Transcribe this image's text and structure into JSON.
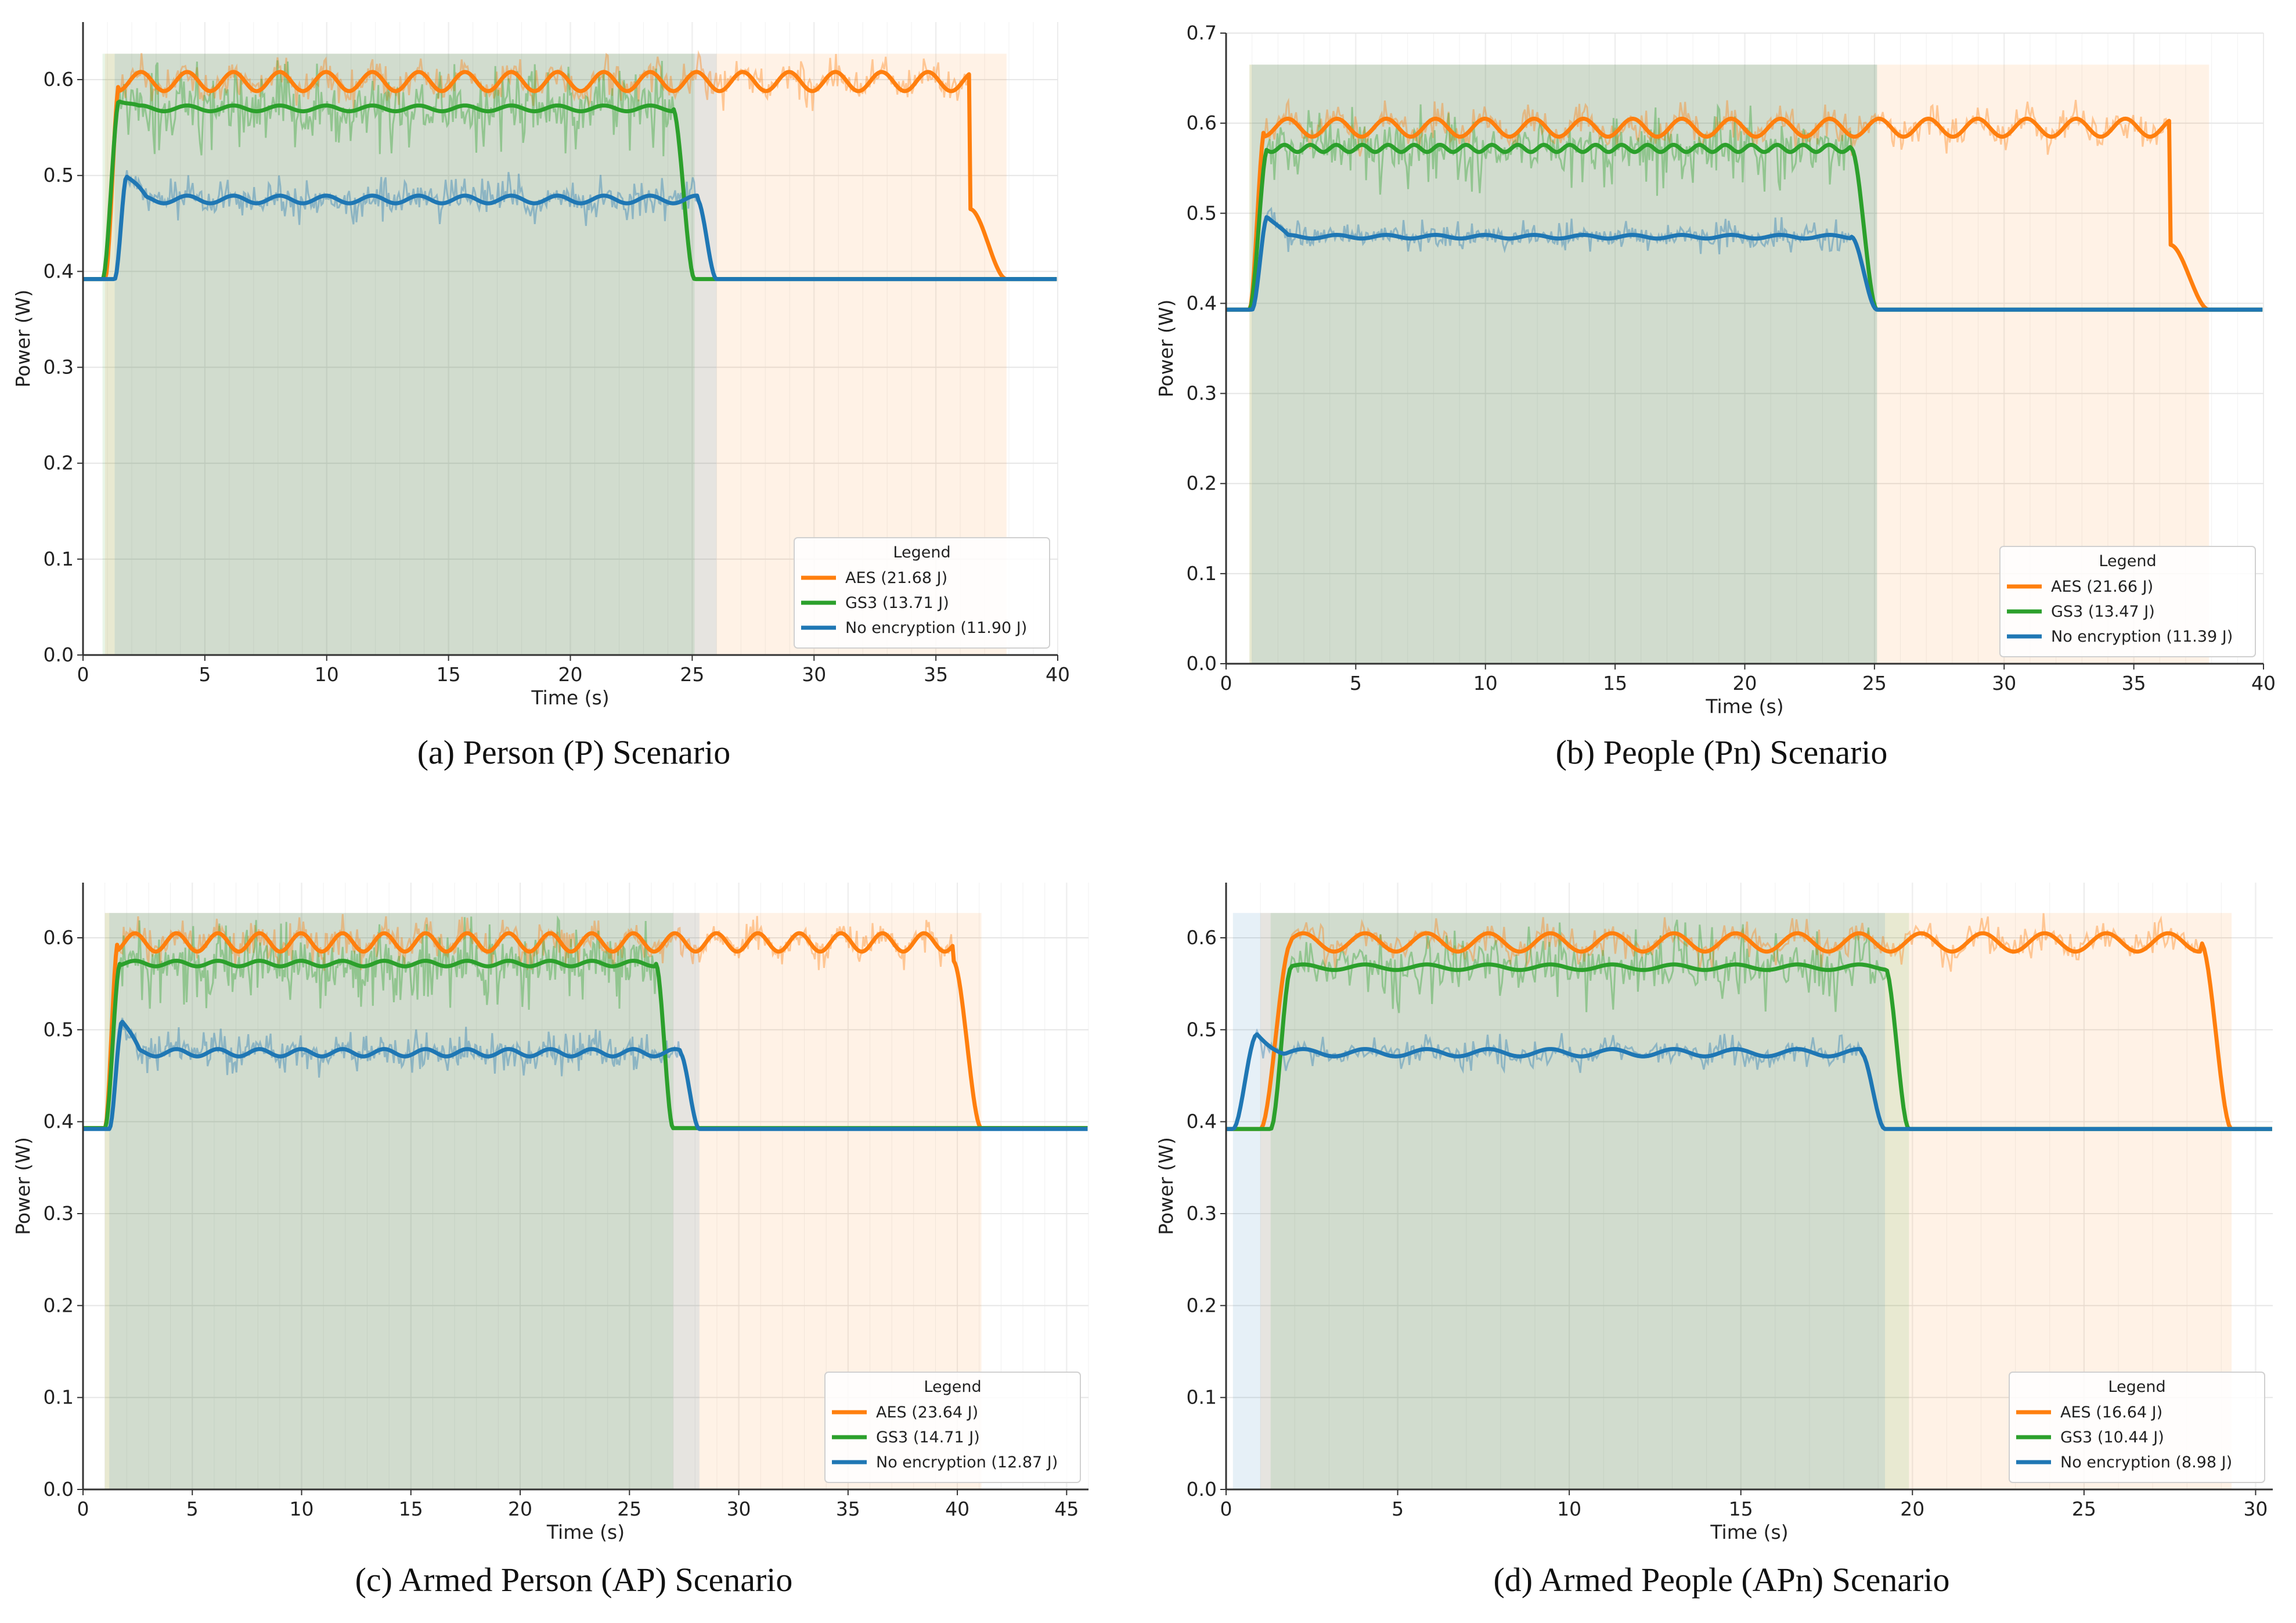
{
  "colors": {
    "aes": "#ff7f0e",
    "gs3": "#2ca02c",
    "none": "#1f77b4"
  },
  "chart_data": [
    {
      "type": "line",
      "caption": "(a) Person (P) Scenario",
      "xlabel": "Time (s)",
      "ylabel": "Power (W)",
      "xlim": [
        0,
        40
      ],
      "ylim": [
        0,
        0.66
      ],
      "xticks": [
        0,
        5,
        10,
        15,
        20,
        25,
        30,
        35,
        40
      ],
      "yticks": [
        0.0,
        0.1,
        0.2,
        0.3,
        0.4,
        0.5,
        0.6
      ],
      "grid": true,
      "legend_title": "Legend",
      "legend_position": "bottom-right",
      "series": [
        {
          "name": "AES (21.68 J)",
          "color": "#ff7f0e",
          "baseline": 0.392,
          "start": 0.9,
          "end": 37.9,
          "rise": 0.6,
          "fall": 1.5,
          "level": 0.598,
          "ripple": 0.01,
          "ripple_period": 1.9,
          "noise": 0.022,
          "dip_at": 36.5,
          "dip_level": 0.465
        },
        {
          "name": "GS3 (13.71 J)",
          "color": "#2ca02c",
          "baseline": 0.392,
          "start": 0.8,
          "end": 25.1,
          "rise": 0.7,
          "fall": 0.9,
          "level": 0.57,
          "ripple": 0.003,
          "ripple_period": 1.9,
          "noise": 0.05,
          "peak": 0.58
        },
        {
          "name": "No encryption (11.90 J)",
          "color": "#1f77b4",
          "baseline": 0.392,
          "start": 1.3,
          "end": 26.0,
          "rise": 0.5,
          "fall": 0.8,
          "level": 0.475,
          "ripple": 0.004,
          "ripple_period": 1.9,
          "noise": 0.025,
          "peak": 0.5
        }
      ]
    },
    {
      "type": "line",
      "caption": "(b) People (Pn) Scenario",
      "xlabel": "Time (s)",
      "ylabel": "Power (W)",
      "xlim": [
        0,
        40
      ],
      "ylim": [
        0,
        0.7
      ],
      "xticks": [
        0,
        5,
        10,
        15,
        20,
        25,
        30,
        35,
        40
      ],
      "yticks": [
        0.0,
        0.1,
        0.2,
        0.3,
        0.4,
        0.5,
        0.6,
        0.7
      ],
      "grid": true,
      "legend_title": "Legend",
      "legend_position": "bottom-right",
      "series": [
        {
          "name": "AES (21.66 J)",
          "color": "#ff7f0e",
          "baseline": 0.393,
          "start": 0.9,
          "end": 37.9,
          "rise": 0.6,
          "fall": 1.5,
          "level": 0.595,
          "ripple": 0.01,
          "ripple_period": 1.9,
          "noise": 0.022,
          "dip_at": 36.8,
          "dip_level": 0.465
        },
        {
          "name": "GS3 (13.47 J)",
          "color": "#2ca02c",
          "baseline": 0.393,
          "start": 0.9,
          "end": 25.1,
          "rise": 0.7,
          "fall": 1.0,
          "level": 0.572,
          "ripple": 0.004,
          "ripple_period": 1.0,
          "noise": 0.05
        },
        {
          "name": "No encryption (11.39 J)",
          "color": "#1f77b4",
          "baseline": 0.393,
          "start": 1.0,
          "end": 25.1,
          "rise": 0.6,
          "fall": 1.0,
          "level": 0.474,
          "ripple": 0.002,
          "ripple_period": 1.9,
          "noise": 0.02,
          "peak": 0.497
        }
      ]
    },
    {
      "type": "line",
      "caption": "(c) Armed Person (AP) Scenario",
      "xlabel": "Time (s)",
      "ylabel": "Power (W)",
      "xlim": [
        0,
        46
      ],
      "ylim": [
        0,
        0.66
      ],
      "xticks": [
        0,
        5,
        10,
        15,
        20,
        25,
        30,
        35,
        40,
        45
      ],
      "yticks": [
        0.0,
        0.1,
        0.2,
        0.3,
        0.4,
        0.5,
        0.6
      ],
      "grid": true,
      "legend_title": "Legend",
      "legend_position": "bottom-right",
      "series": [
        {
          "name": "AES (23.64 J)",
          "color": "#ff7f0e",
          "baseline": 0.393,
          "start": 1.0,
          "end": 41.1,
          "rise": 0.6,
          "fall": 1.3,
          "level": 0.595,
          "ripple": 0.01,
          "ripple_period": 1.9,
          "noise": 0.022,
          "dip_at": 40.0,
          "dip_level": 0.575
        },
        {
          "name": "GS3 (14.71 J)",
          "color": "#2ca02c",
          "baseline": 0.393,
          "start": 1.0,
          "end": 27.0,
          "rise": 0.7,
          "fall": 0.8,
          "level": 0.572,
          "ripple": 0.003,
          "ripple_period": 1.9,
          "noise": 0.05
        },
        {
          "name": "No encryption (12.87 J)",
          "color": "#1f77b4",
          "baseline": 0.392,
          "start": 1.2,
          "end": 28.2,
          "rise": 0.6,
          "fall": 0.9,
          "level": 0.475,
          "ripple": 0.004,
          "ripple_period": 1.9,
          "noise": 0.025,
          "peak": 0.51
        }
      ]
    },
    {
      "type": "line",
      "caption": "(d) Armed People (APn) Scenario",
      "xlabel": "Time (s)",
      "ylabel": "Power (W)",
      "xlim": [
        0,
        30.5
      ],
      "ylim": [
        0,
        0.66
      ],
      "xticks": [
        0,
        5,
        10,
        15,
        20,
        25,
        30
      ],
      "yticks": [
        0.0,
        0.1,
        0.2,
        0.3,
        0.4,
        0.5,
        0.6
      ],
      "grid": true,
      "legend_title": "Legend",
      "legend_position": "bottom-right",
      "series": [
        {
          "name": "AES (16.64 J)",
          "color": "#ff7f0e",
          "baseline": 0.392,
          "start": 1.0,
          "end": 29.3,
          "rise": 0.9,
          "fall": 0.9,
          "level": 0.595,
          "ripple": 0.01,
          "ripple_period": 1.8,
          "noise": 0.022
        },
        {
          "name": "GS3 (10.44 J)",
          "color": "#2ca02c",
          "baseline": 0.392,
          "start": 1.3,
          "end": 19.9,
          "rise": 0.6,
          "fall": 0.7,
          "level": 0.568,
          "ripple": 0.003,
          "ripple_period": 1.8,
          "noise": 0.05
        },
        {
          "name": "No encryption (8.98 J)",
          "color": "#1f77b4",
          "baseline": 0.392,
          "start": 0.2,
          "end": 19.2,
          "rise": 0.7,
          "fall": 0.7,
          "level": 0.475,
          "ripple": 0.004,
          "ripple_period": 1.8,
          "noise": 0.02,
          "peak": 0.495
        }
      ]
    }
  ]
}
